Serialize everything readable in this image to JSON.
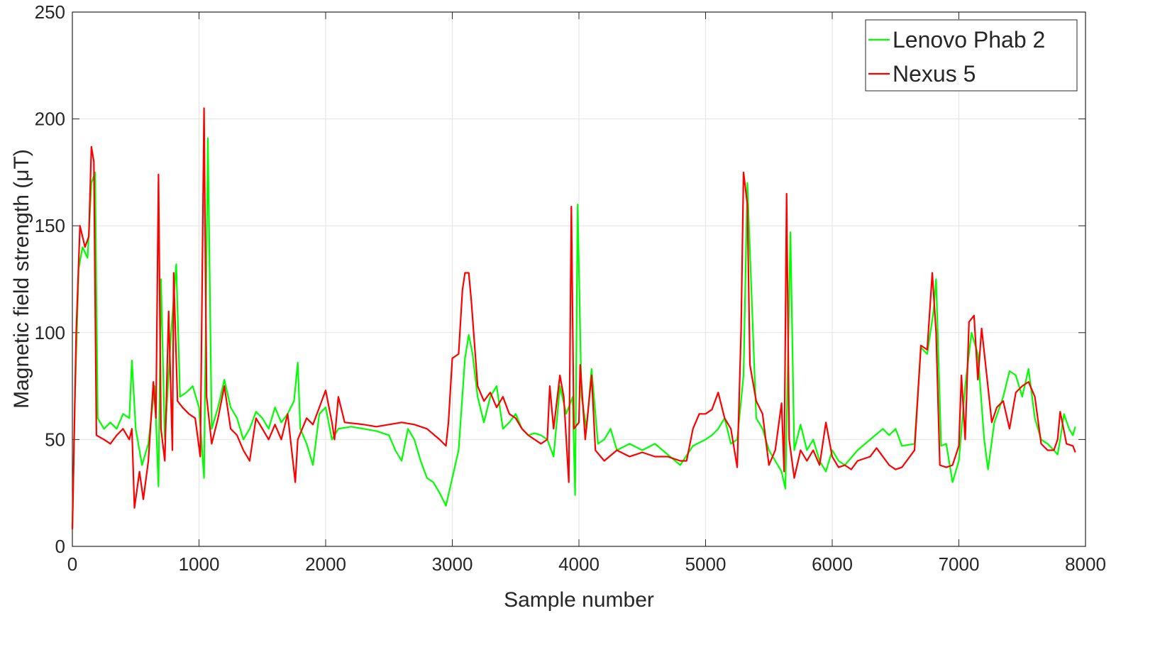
{
  "chart_data": {
    "type": "line",
    "xlabel": "Sample number",
    "ylabel": "Magnetic field strength (μT)",
    "xlim": [
      0,
      8000
    ],
    "ylim": [
      0,
      250
    ],
    "xticks": [
      0,
      1000,
      2000,
      3000,
      4000,
      5000,
      6000,
      7000,
      8000
    ],
    "yticks": [
      0,
      50,
      100,
      150,
      200,
      250
    ],
    "grid": true,
    "legend": "upper right",
    "series": [
      {
        "name": "Lenovo Phab 2",
        "color": "#00ff00",
        "x": [
          0,
          20,
          50,
          80,
          120,
          150,
          180,
          200,
          250,
          300,
          350,
          400,
          450,
          470,
          500,
          550,
          600,
          650,
          680,
          700,
          730,
          780,
          820,
          850,
          900,
          950,
          1000,
          1040,
          1070,
          1100,
          1150,
          1200,
          1250,
          1300,
          1350,
          1400,
          1450,
          1500,
          1550,
          1600,
          1650,
          1700,
          1750,
          1780,
          1800,
          1850,
          1900,
          1950,
          2000,
          2050,
          2100,
          2200,
          2300,
          2400,
          2500,
          2550,
          2600,
          2650,
          2700,
          2750,
          2800,
          2850,
          2900,
          2950,
          3000,
          3050,
          3100,
          3130,
          3160,
          3200,
          3250,
          3300,
          3350,
          3400,
          3450,
          3500,
          3550,
          3600,
          3650,
          3700,
          3750,
          3800,
          3850,
          3900,
          3950,
          3970,
          3990,
          4020,
          4060,
          4100,
          4150,
          4200,
          4250,
          4300,
          4400,
          4500,
          4600,
          4700,
          4800,
          4900,
          5000,
          5050,
          5100,
          5150,
          5200,
          5250,
          5300,
          5330,
          5400,
          5450,
          5500,
          5550,
          5600,
          5630,
          5670,
          5700,
          5750,
          5800,
          5850,
          5900,
          5950,
          6000,
          6050,
          6100,
          6200,
          6300,
          6400,
          6450,
          6500,
          6550,
          6650,
          6700,
          6750,
          6800,
          6820,
          6860,
          6900,
          6950,
          7000,
          7050,
          7100,
          7150,
          7200,
          7230,
          7280,
          7350,
          7400,
          7450,
          7500,
          7550,
          7600,
          7650,
          7700,
          7750,
          7780,
          7800,
          7830,
          7870,
          7900,
          7920
        ],
        "values": [
          8,
          70,
          130,
          140,
          135,
          170,
          175,
          60,
          55,
          58,
          55,
          62,
          60,
          87,
          55,
          38,
          48,
          75,
          28,
          125,
          50,
          100,
          132,
          70,
          72,
          75,
          65,
          32,
          191,
          55,
          65,
          78,
          65,
          60,
          50,
          55,
          63,
          60,
          55,
          65,
          58,
          62,
          68,
          86,
          55,
          48,
          38,
          62,
          65,
          50,
          55,
          56,
          55,
          54,
          52,
          45,
          40,
          55,
          50,
          40,
          32,
          30,
          25,
          19,
          32,
          45,
          88,
          99,
          90,
          70,
          58,
          70,
          75,
          55,
          58,
          62,
          55,
          52,
          53,
          52,
          50,
          42,
          75,
          62,
          70,
          24,
          160,
          70,
          55,
          83,
          48,
          50,
          55,
          45,
          48,
          45,
          48,
          43,
          38,
          47,
          50,
          52,
          55,
          60,
          48,
          50,
          80,
          170,
          60,
          55,
          45,
          40,
          35,
          27,
          147,
          45,
          57,
          45,
          50,
          40,
          35,
          45,
          40,
          38,
          45,
          50,
          55,
          52,
          55,
          47,
          48,
          93,
          90,
          110,
          125,
          47,
          48,
          30,
          40,
          75,
          100,
          90,
          50,
          36,
          58,
          70,
          82,
          80,
          70,
          83,
          60,
          50,
          48,
          45,
          43,
          50,
          62,
          55,
          52,
          56
        ]
      },
      {
        "name": "Nexus 5",
        "color": "#ff0000",
        "x": [
          0,
          30,
          60,
          100,
          130,
          150,
          170,
          190,
          250,
          300,
          350,
          400,
          450,
          470,
          490,
          530,
          560,
          600,
          640,
          660,
          680,
          700,
          730,
          760,
          790,
          800,
          830,
          870,
          920,
          970,
          1010,
          1040,
          1060,
          1100,
          1150,
          1200,
          1250,
          1300,
          1350,
          1400,
          1450,
          1500,
          1550,
          1600,
          1650,
          1700,
          1760,
          1780,
          1850,
          1900,
          1950,
          2000,
          2050,
          2070,
          2100,
          2150,
          2300,
          2400,
          2500,
          2600,
          2700,
          2800,
          2900,
          2950,
          2970,
          3000,
          3050,
          3080,
          3100,
          3130,
          3150,
          3200,
          3250,
          3300,
          3350,
          3400,
          3450,
          3500,
          3550,
          3600,
          3650,
          3700,
          3750,
          3770,
          3800,
          3850,
          3880,
          3920,
          3940,
          3960,
          4000,
          4010,
          4050,
          4100,
          4130,
          4200,
          4300,
          4400,
          4500,
          4600,
          4700,
          4800,
          4850,
          4900,
          4950,
          5000,
          5050,
          5100,
          5150,
          5200,
          5250,
          5280,
          5300,
          5330,
          5350,
          5400,
          5450,
          5500,
          5550,
          5600,
          5620,
          5640,
          5660,
          5700,
          5750,
          5800,
          5850,
          5900,
          5950,
          6000,
          6050,
          6100,
          6150,
          6200,
          6300,
          6350,
          6400,
          6450,
          6500,
          6550,
          6650,
          6700,
          6750,
          6790,
          6820,
          6850,
          6900,
          6950,
          7000,
          7020,
          7050,
          7080,
          7120,
          7150,
          7180,
          7220,
          7260,
          7300,
          7350,
          7400,
          7450,
          7500,
          7550,
          7600,
          7650,
          7700,
          7750,
          7780,
          7800,
          7850,
          7900,
          7920
        ],
        "values": [
          8,
          100,
          150,
          140,
          145,
          187,
          180,
          52,
          50,
          48,
          52,
          55,
          50,
          55,
          18,
          35,
          22,
          40,
          77,
          60,
          174,
          55,
          40,
          110,
          45,
          128,
          68,
          65,
          62,
          60,
          42,
          205,
          70,
          48,
          60,
          75,
          55,
          52,
          45,
          40,
          60,
          55,
          50,
          57,
          50,
          62,
          30,
          50,
          60,
          57,
          65,
          73,
          58,
          50,
          70,
          58,
          57,
          56,
          57,
          58,
          57,
          55,
          50,
          47,
          58,
          88,
          90,
          120,
          128,
          128,
          115,
          75,
          68,
          72,
          65,
          70,
          62,
          60,
          55,
          52,
          50,
          48,
          50,
          75,
          55,
          80,
          70,
          30,
          159,
          55,
          58,
          85,
          50,
          80,
          45,
          40,
          45,
          42,
          44,
          42,
          42,
          40,
          40,
          55,
          62,
          62,
          64,
          72,
          60,
          55,
          37,
          100,
          175,
          160,
          85,
          68,
          62,
          38,
          45,
          67,
          35,
          165,
          50,
          32,
          45,
          40,
          45,
          38,
          58,
          42,
          37,
          38,
          36,
          40,
          42,
          46,
          42,
          38,
          36,
          37,
          45,
          94,
          92,
          128,
          100,
          38,
          37,
          38,
          47,
          80,
          50,
          105,
          108,
          78,
          102,
          80,
          58,
          65,
          68,
          55,
          72,
          75,
          77,
          70,
          48,
          45,
          45,
          50,
          63,
          48,
          47,
          44
        ]
      }
    ]
  }
}
